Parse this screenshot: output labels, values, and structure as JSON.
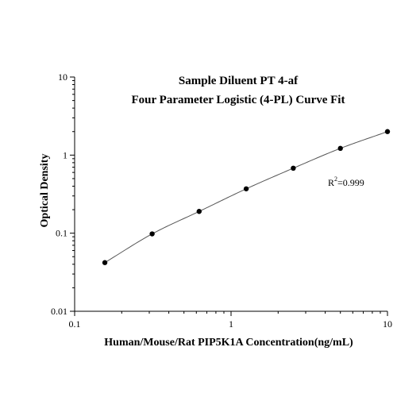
{
  "chart_data": {
    "type": "scatter",
    "title_line1": "Sample Diluent PT 4-af",
    "title_line2": "Four Parameter Logistic (4-PL) Curve Fit",
    "xlabel": "Human/Mouse/Rat PIP5K1A Concentration(ng/mL)",
    "ylabel": "Optical Density",
    "x_scale": "log",
    "y_scale": "log",
    "xlim": [
      0.1,
      10
    ],
    "ylim": [
      0.01,
      10
    ],
    "x_ticks": [
      0.1,
      1,
      10
    ],
    "x_tick_labels": [
      "0.1",
      "1",
      "10"
    ],
    "y_ticks": [
      0.01,
      0.1,
      1,
      10
    ],
    "y_tick_labels": [
      "0.01",
      "0.1",
      "1",
      "10"
    ],
    "grid": false,
    "annotation": {
      "prefix": "R",
      "sup": "2",
      "suffix": "=0.999"
    },
    "series": [
      {
        "x": [
          0.156,
          0.313,
          0.625,
          1.25,
          2.5,
          5,
          10
        ],
        "y": [
          0.042,
          0.098,
          0.19,
          0.37,
          0.68,
          1.22,
          2.0
        ]
      }
    ]
  }
}
